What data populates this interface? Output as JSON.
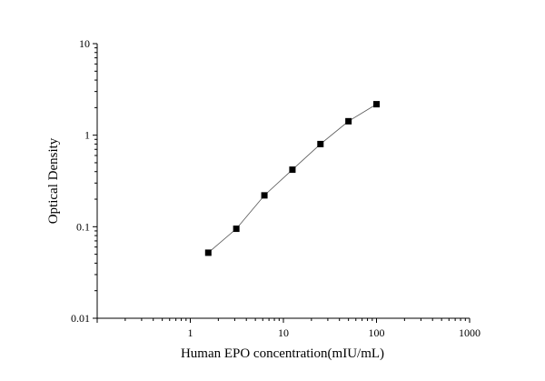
{
  "chart_data": {
    "type": "scatter",
    "title": "",
    "xlabel": "Human EPO concentration(mIU/mL)",
    "ylabel": "Optical Density",
    "x_scale": "log",
    "y_scale": "log",
    "xlim": [
      0.1,
      1000
    ],
    "ylim": [
      0.01,
      10
    ],
    "x_ticks": [
      "1",
      "10",
      "100",
      "1000"
    ],
    "y_ticks": [
      "0.01",
      "0.1",
      "1",
      "10"
    ],
    "grid": false,
    "legend": "none",
    "marker": "square",
    "connect_points": true,
    "colors": {
      "marker": "#000000",
      "line": "#555555",
      "axis": "#000000"
    },
    "series": [
      {
        "x": [
          1.56,
          3.12,
          6.25,
          12.5,
          25,
          50,
          100
        ],
        "y": [
          0.052,
          0.095,
          0.22,
          0.42,
          0.8,
          1.42,
          2.18
        ]
      }
    ]
  }
}
